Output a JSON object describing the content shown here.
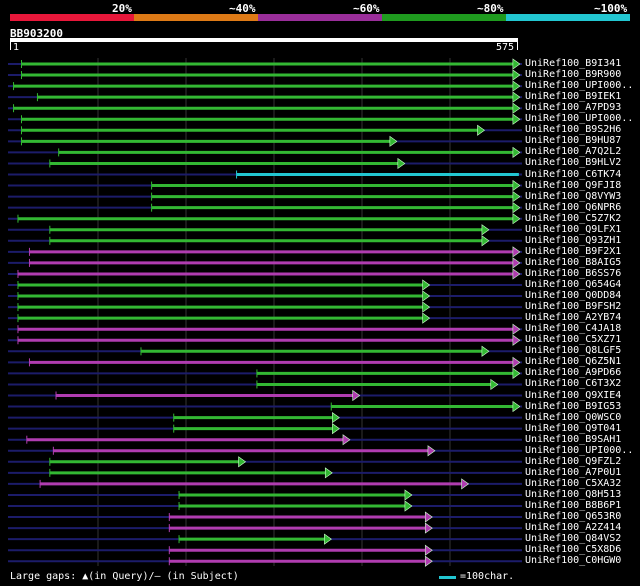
{
  "legend": {
    "percent_labels": [
      "20%",
      "~40%",
      "~60%",
      "~80%",
      "~100%"
    ],
    "colors": [
      "#e8173a",
      "#de7a16",
      "#9a2e9a",
      "#1f9b1f",
      "#22c6d1"
    ]
  },
  "query": {
    "id": "BB903200",
    "start_label": "1",
    "end_label": "575",
    "length": 575
  },
  "hit_colors": {
    "green": "#33b833",
    "purple": "#b03cb0",
    "cyan": "#22c6d1",
    "track": "#1c1c6a",
    "marker": "#ffff88"
  },
  "hits": [
    {
      "label": "UniRef100_B9I341",
      "start": 14,
      "end": 576,
      "color": "green",
      "arrow": true
    },
    {
      "label": "UniRef100_B9R900",
      "start": 14,
      "end": 576,
      "color": "green",
      "arrow": true
    },
    {
      "label": "UniRef100_UPI000..",
      "start": 5,
      "end": 576,
      "color": "green",
      "arrow": true
    },
    {
      "label": "UniRef100_B9IEK1",
      "start": 32,
      "end": 576,
      "color": "green",
      "arrow": true
    },
    {
      "label": "UniRef100_A7PD93",
      "start": 5,
      "end": 576,
      "color": "green",
      "arrow": true
    },
    {
      "label": "UniRef100_UPI000..",
      "start": 14,
      "end": 576,
      "color": "green",
      "arrow": true
    },
    {
      "label": "UniRef100_B9S2H6",
      "start": 14,
      "end": 536,
      "color": "green",
      "arrow": true
    },
    {
      "label": "UniRef100_B9HU87",
      "start": 14,
      "end": 437,
      "color": "green",
      "arrow": true
    },
    {
      "label": "UniRef100_A7Q2L2",
      "start": 56,
      "end": 576,
      "color": "green",
      "arrow": true
    },
    {
      "label": "UniRef100_B9HLV2",
      "start": 46,
      "end": 446,
      "color": "green",
      "arrow": true
    },
    {
      "label": "UniRef100_C6TK74",
      "start": 257,
      "end": 576,
      "color": "cyan",
      "arrow": false
    },
    {
      "label": "UniRef100_Q9FJI8",
      "start": 161,
      "end": 576,
      "color": "green",
      "arrow": true
    },
    {
      "label": "UniRef100_Q8VYW3",
      "start": 161,
      "end": 576,
      "color": "green",
      "arrow": true
    },
    {
      "label": "UniRef100_Q6NPR6",
      "start": 161,
      "end": 576,
      "color": "green",
      "arrow": true
    },
    {
      "label": "UniRef100_C5Z7K2",
      "start": 10,
      "end": 576,
      "color": "green",
      "arrow": true
    },
    {
      "label": "UniRef100_Q9LFX1",
      "start": 46,
      "end": 541,
      "color": "green",
      "arrow": true
    },
    {
      "label": "UniRef100_Q93ZH1",
      "start": 46,
      "end": 541,
      "color": "green",
      "arrow": true
    },
    {
      "label": "UniRef100_B9F2X1",
      "start": 23,
      "end": 576,
      "color": "purple",
      "arrow": true
    },
    {
      "label": "UniRef100_B8AIG5",
      "start": 23,
      "end": 576,
      "color": "purple",
      "arrow": true
    },
    {
      "label": "UniRef100_B6SS76",
      "start": 10,
      "end": 576,
      "color": "purple",
      "arrow": true
    },
    {
      "label": "UniRef100_Q654G4",
      "start": 10,
      "end": 474,
      "color": "green",
      "arrow": true
    },
    {
      "label": "UniRef100_Q0DD84",
      "start": 10,
      "end": 474,
      "color": "green",
      "arrow": true
    },
    {
      "label": "UniRef100_B9FSH2",
      "start": 10,
      "end": 474,
      "color": "green",
      "arrow": true
    },
    {
      "label": "UniRef100_A2YB74",
      "start": 10,
      "end": 474,
      "color": "green",
      "arrow": true
    },
    {
      "label": "UniRef100_C4JA18",
      "start": 10,
      "end": 576,
      "color": "purple",
      "arrow": true
    },
    {
      "label": "UniRef100_C5XZ71",
      "start": 10,
      "end": 576,
      "color": "purple",
      "arrow": true
    },
    {
      "label": "UniRef100_Q8LGF5",
      "start": 149,
      "end": 541,
      "color": "green",
      "arrow": true
    },
    {
      "label": "UniRef100_Q6Z5N1",
      "start": 23,
      "end": 576,
      "color": "purple",
      "arrow": true
    },
    {
      "label": "UniRef100_A9PD66",
      "start": 280,
      "end": 576,
      "color": "green",
      "arrow": true
    },
    {
      "label": "UniRef100_C6T3X2",
      "start": 280,
      "end": 551,
      "color": "green",
      "arrow": true
    },
    {
      "label": "UniRef100_Q9XIE4",
      "start": 53,
      "end": 395,
      "color": "purple",
      "arrow": true
    },
    {
      "label": "UniRef100_B9IG53",
      "start": 364,
      "end": 576,
      "color": "green",
      "arrow": true
    },
    {
      "label": "UniRef100_Q0WSC0",
      "start": 186,
      "end": 372,
      "color": "green",
      "arrow": true
    },
    {
      "label": "UniRef100_Q9T041",
      "start": 186,
      "end": 372,
      "color": "green",
      "arrow": true
    },
    {
      "label": "UniRef100_B9SAH1",
      "start": 20,
      "end": 384,
      "color": "purple",
      "arrow": true
    },
    {
      "label": "UniRef100_UPI000..",
      "start": 50,
      "end": 480,
      "color": "purple",
      "arrow": true
    },
    {
      "label": "UniRef100_Q9FZL2",
      "start": 46,
      "end": 266,
      "color": "green",
      "arrow": true
    },
    {
      "label": "UniRef100_A7P0U1",
      "start": 46,
      "end": 364,
      "color": "green",
      "arrow": true
    },
    {
      "label": "UniRef100_C5XA32",
      "start": 35,
      "end": 518,
      "color": "purple",
      "arrow": true
    },
    {
      "label": "UniRef100_Q8H513",
      "start": 192,
      "end": 454,
      "color": "green",
      "arrow": true
    },
    {
      "label": "UniRef100_B8B6P1",
      "start": 192,
      "end": 454,
      "color": "green",
      "arrow": true
    },
    {
      "label": "UniRef100_Q653R0",
      "start": 181,
      "end": 477,
      "color": "purple",
      "arrow": true
    },
    {
      "label": "UniRef100_A2Z414",
      "start": 181,
      "end": 477,
      "color": "purple",
      "arrow": true
    },
    {
      "label": "UniRef100_Q84VS2",
      "start": 192,
      "end": 363,
      "color": "green",
      "arrow": true
    },
    {
      "label": "UniRef100_C5X8D6",
      "start": 181,
      "end": 477,
      "color": "purple",
      "arrow": true
    },
    {
      "label": "UniRef100_C0HGW0",
      "start": 181,
      "end": 477,
      "color": "purple",
      "arrow": true
    }
  ],
  "footer": {
    "gaps_text": "Large gaps: ▲(in Query)/– (in Subject)",
    "scale_text": "=100char."
  }
}
